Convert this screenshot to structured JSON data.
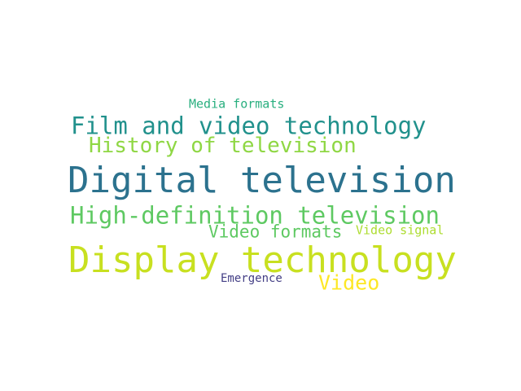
{
  "words": [
    {
      "text": "Digital television",
      "color": "#2c728e"
    },
    {
      "text": "Display technology",
      "color": "#c8e020"
    },
    {
      "text": "Film and video technology",
      "color": "#21918c"
    },
    {
      "text": "High-definition television",
      "color": "#5ec962"
    },
    {
      "text": "History of television",
      "color": "#8fd744"
    },
    {
      "text": "Video formats",
      "color": "#5ec962"
    },
    {
      "text": "Video",
      "color": "#fde725"
    },
    {
      "text": "Media formats",
      "color": "#29af7f"
    },
    {
      "text": "Video signal",
      "color": "#addc30"
    },
    {
      "text": "Emergence",
      "color": "#433e85"
    }
  ]
}
